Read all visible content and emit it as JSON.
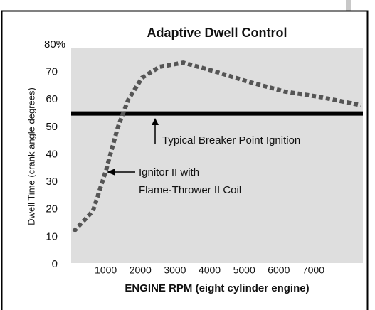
{
  "chart_data": {
    "type": "line",
    "title": "Adaptive Dwell Control",
    "xlabel": "ENGINE RPM (eight cylinder engine)",
    "ylabel": "Dwell Time (crank angle degrees)",
    "x": [
      70,
      630,
      1000,
      1350,
      1650,
      2050,
      2560,
      3240,
      4100,
      5130,
      6160,
      7190,
      8380
    ],
    "series": [
      {
        "color": "#555555",
        "values": [
          12,
          19.5,
          34,
          50,
          60,
          68,
          72,
          73.5,
          70.5,
          66.5,
          63,
          61,
          58
        ]
      }
    ],
    "reference_line": {
      "value": 55,
      "color": "#000000"
    },
    "xlim": [
      0,
      8430
    ],
    "ylim": [
      0,
      80
    ],
    "xticks": [
      1000,
      2000,
      3000,
      4000,
      5000,
      6000,
      7000
    ],
    "yticks": [
      0,
      10,
      20,
      30,
      40,
      50,
      60,
      70,
      {
        "value": 80,
        "label": "80%"
      }
    ],
    "plot_color": "#dedede",
    "annotations": [
      {
        "text": "Typical Breaker Point Ignition"
      },
      {
        "lines": [
          "Ignitor II with",
          "Flame-Thrower II Coil"
        ]
      }
    ]
  }
}
